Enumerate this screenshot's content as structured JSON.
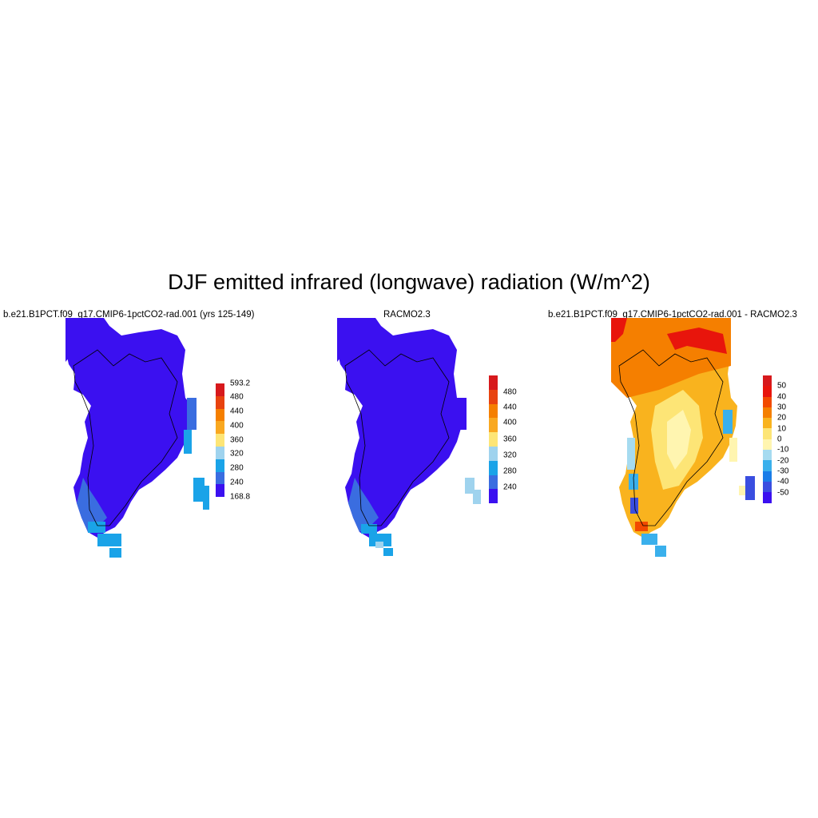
{
  "title": "DJF emitted infrared (longwave) radiation (W/m^2)",
  "panels": [
    {
      "title": "b.e21.B1PCT.f09_g17.CMIP6-1pctCO2-rad.001 (yrs 125-149)",
      "colorbar": {
        "labels": [
          "593.2",
          "480",
          "440",
          "400",
          "360",
          "320",
          "280",
          "240",
          "168.8"
        ],
        "colors": [
          "#d7191c",
          "#e8430f",
          "#f57f00",
          "#f9a820",
          "#fde576",
          "#9fd3ee",
          "#1aa3e8",
          "#3a6de0",
          "#3b10f0"
        ]
      }
    },
    {
      "title": "RACMO2.3",
      "colorbar": {
        "labels": [
          "480",
          "440",
          "400",
          "360",
          "320",
          "280",
          "240"
        ],
        "colors": [
          "#d7191c",
          "#e8430f",
          "#f57f00",
          "#f9a820",
          "#fde576",
          "#9fd3ee",
          "#1aa3e8",
          "#3a6de0",
          "#3b10f0"
        ]
      }
    },
    {
      "title": "b.e21.B1PCT.f09_g17.CMIP6-1pctCO2-rad.001 - RACMO2.3",
      "colorbar": {
        "labels": [
          "50",
          "40",
          "30",
          "20",
          "10",
          "0",
          "-10",
          "-20",
          "-30",
          "-40",
          "-50"
        ],
        "colors": [
          "#d7191c",
          "#e8150c",
          "#f24a00",
          "#f57f00",
          "#f9b31e",
          "#fde576",
          "#fff5b0",
          "#a6dbf0",
          "#3ab0ec",
          "#1a7de8",
          "#3a4ee0",
          "#3b10f0"
        ]
      }
    }
  ]
}
